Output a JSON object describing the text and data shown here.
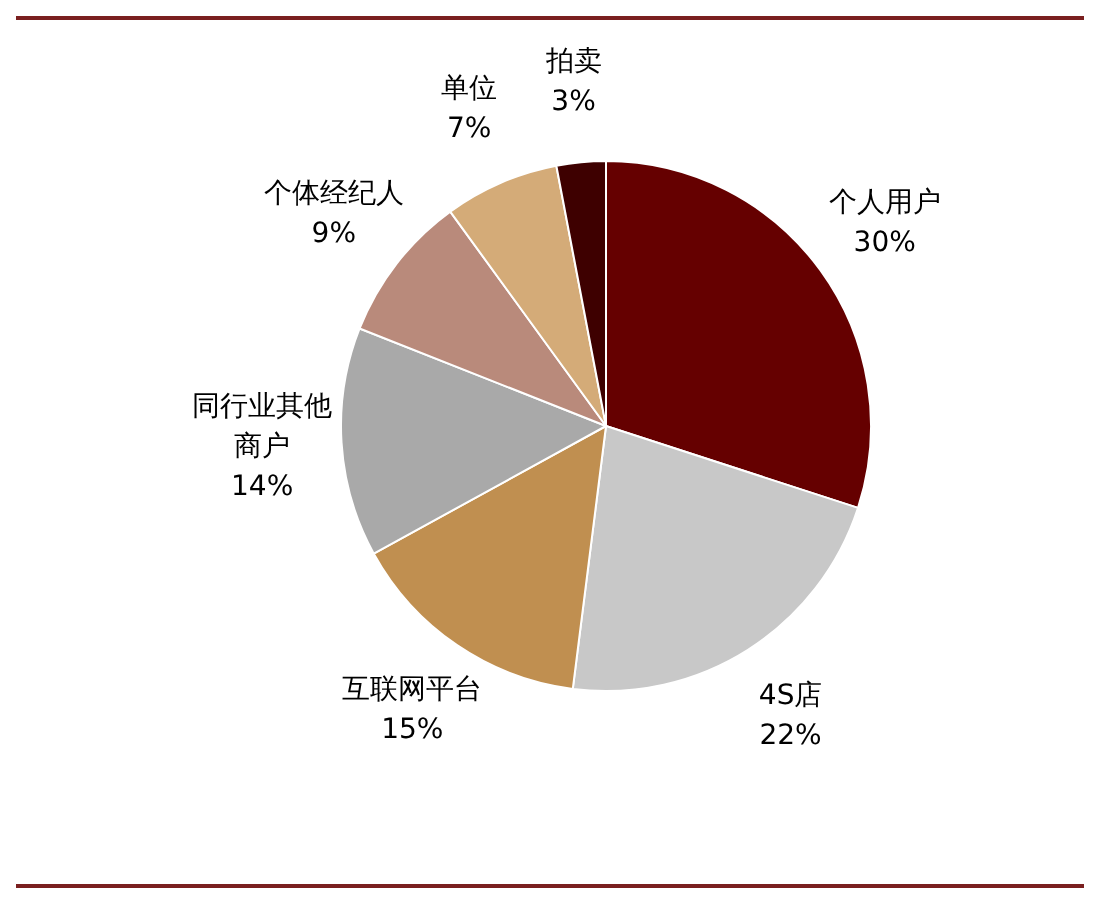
{
  "chart_data": {
    "type": "pie",
    "categories": [
      "个人用户",
      "4S店",
      "互联网平台",
      "同行业其他商户",
      "个体经纪人",
      "单位",
      "拍卖"
    ],
    "values": [
      30,
      22,
      15,
      14,
      9,
      7,
      3
    ],
    "colors": [
      "#650000",
      "#c8c8c8",
      "#c08f50",
      "#a9a9a9",
      "#b98a7b",
      "#d4ab78",
      "#3e0000"
    ],
    "value_labels": [
      "30%",
      "22%",
      "15%",
      "14%",
      "9%",
      "7%",
      "3%"
    ],
    "legend": false
  }
}
